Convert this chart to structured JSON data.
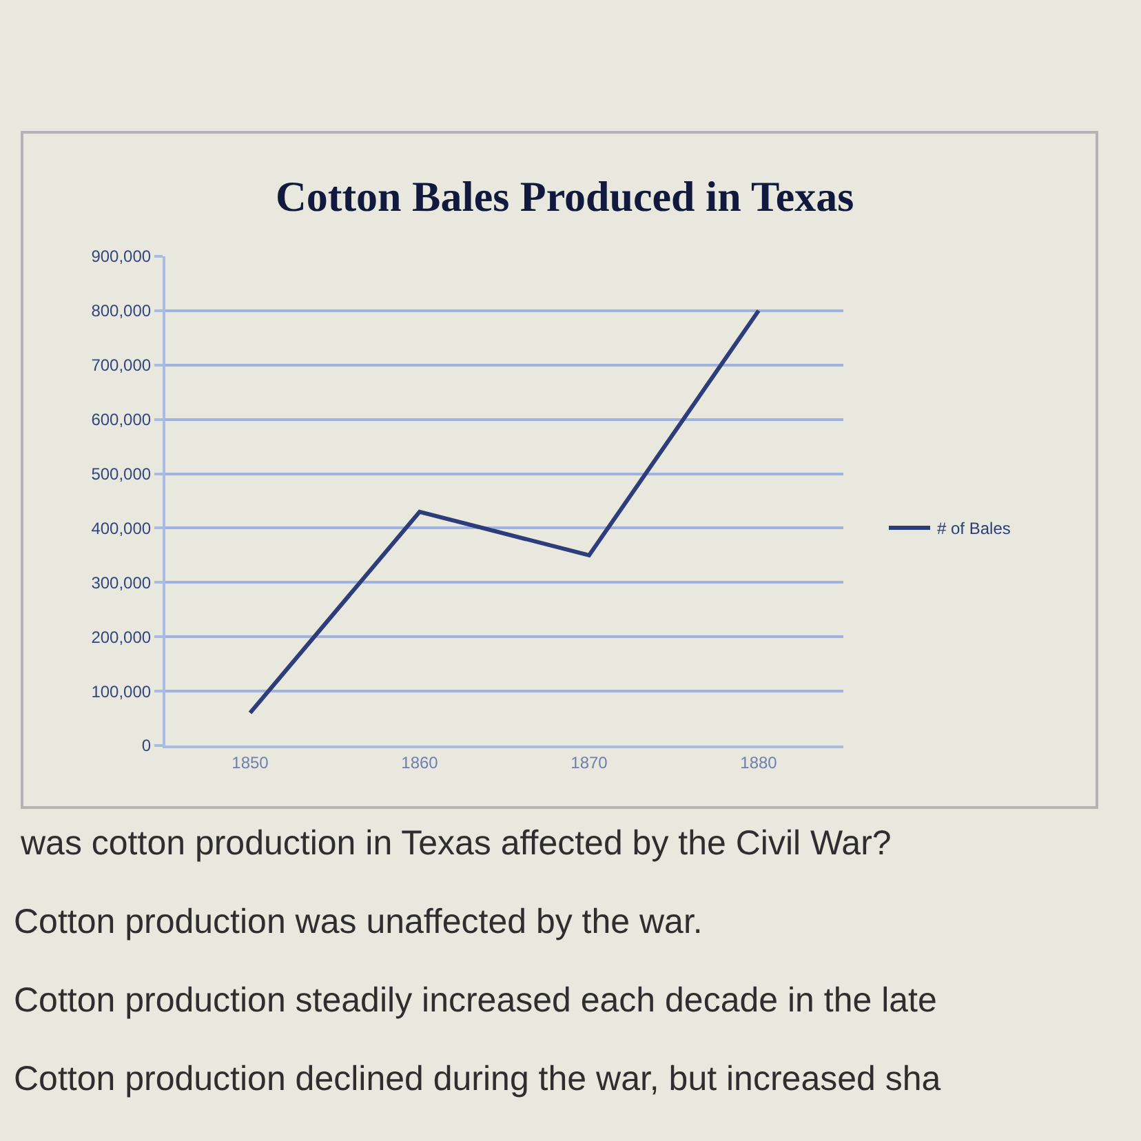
{
  "chart_data": {
    "type": "line",
    "title": "Cotton Bales Produced in Texas",
    "categories": [
      "1850",
      "1860",
      "1870",
      "1880"
    ],
    "series": [
      {
        "name": "# of Bales",
        "color": "#2c3d7a",
        "values": [
          60000,
          430000,
          350000,
          800000
        ]
      }
    ],
    "ylim": [
      0,
      900000
    ],
    "yticks": [
      0,
      {
        "value": 100000,
        "label": "100,000"
      },
      {
        "value": 200000,
        "label": "200,000"
      },
      {
        "value": 300000,
        "label": "300,000"
      },
      {
        "value": 400000,
        "label": "400,000"
      },
      {
        "value": 500000,
        "label": "500,000"
      },
      {
        "value": 600000,
        "label": "600,000"
      },
      {
        "value": 700000,
        "label": "700,000"
      },
      {
        "value": 800000,
        "label": "800,000"
      },
      {
        "value": 900000,
        "label": "900,000"
      }
    ],
    "grid": "y",
    "legend": "right",
    "marker": "none",
    "line_style": "solid",
    "annotations": [
      "was cotton production in Texas affected by the Civil War?",
      "Cotton production was unaffected by the war.",
      "Cotton production steadily increased each decade in the late",
      "Cotton production declined during the war, but increased sha"
    ]
  }
}
